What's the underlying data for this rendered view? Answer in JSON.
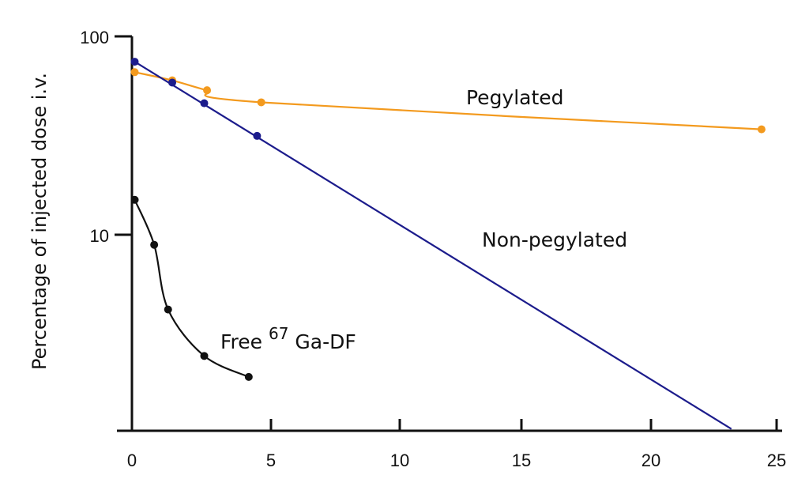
{
  "chart_data": {
    "type": "line",
    "title": "",
    "xlabel": "",
    "ylabel": "Percentage of injected dose i.v.",
    "xlim": [
      0,
      25
    ],
    "ylim": [
      1,
      100
    ],
    "yscale": "log",
    "grid": false,
    "x_ticks": [
      "0",
      "5",
      "10",
      "15",
      "20",
      "25"
    ],
    "y_ticks": [
      "100",
      "10"
    ],
    "series": [
      {
        "name": "Pegylated",
        "color": "#f39a1e",
        "x": [
          0.1,
          1.45,
          2.7,
          4.65,
          24.4
        ],
        "y": [
          66,
          60,
          53.5,
          46.5,
          34
        ]
      },
      {
        "name": "Non-pegylated",
        "color": "#1c1c8c",
        "x": [
          0.1,
          1.45,
          2.6,
          4.5
        ],
        "y": [
          74.5,
          58.5,
          46,
          31.5
        ],
        "fit_line_end": {
          "x": 23.2,
          "y": 1.05
        }
      },
      {
        "name": "Free 67 Ga-DF",
        "color": "#111111",
        "x": [
          0.1,
          0.8,
          1.3,
          2.6,
          4.2
        ],
        "y": [
          15,
          8.9,
          4.2,
          2.45,
          1.92
        ]
      }
    ],
    "annotations": {
      "pegylated": "Pegylated",
      "non_pegylated": "Non-pegylated",
      "free_prefix": "Free ",
      "free_sup": "67",
      "free_suffix": " Ga-DF"
    }
  }
}
